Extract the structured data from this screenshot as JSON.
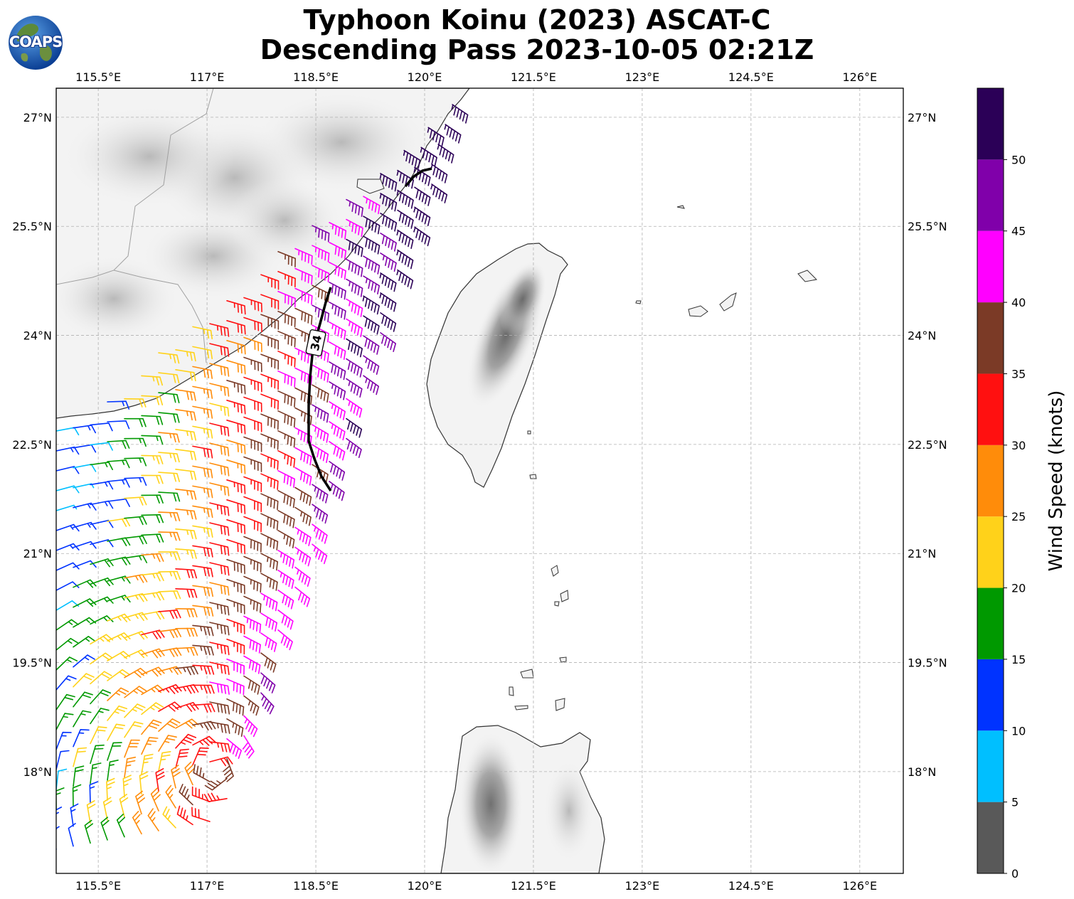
{
  "header": {
    "title_line1": "Typhoon Koinu (2023) ASCAT-C",
    "title_line2": "Descending Pass 2023-10-05 02:21Z",
    "logo_text": "COAPS"
  },
  "map": {
    "lon_labels": [
      "115.5°E",
      "117°E",
      "118.5°E",
      "120°E",
      "121.5°E",
      "123°E",
      "124.5°E",
      "126°E"
    ],
    "lat_labels": [
      "27°N",
      "25.5°N",
      "24°N",
      "22.5°N",
      "21°N",
      "19.5°N",
      "18°N"
    ],
    "lon_values": [
      115.5,
      117,
      118.5,
      120,
      121.5,
      123,
      124.5,
      126
    ],
    "lat_values": [
      27,
      25.5,
      24,
      22.5,
      21,
      19.5,
      18
    ],
    "extent": {
      "lon_min": 114.92,
      "lon_max": 126.6,
      "lat_min": 16.6,
      "lat_max": 27.4
    },
    "wind_radius_label": "34",
    "land_color": "#f4f4f4",
    "coast_color": "#333333"
  },
  "colorbar": {
    "label": "Wind Speed (knots)",
    "ticks": [
      "0",
      "5",
      "10",
      "15",
      "20",
      "25",
      "30",
      "35",
      "40",
      "45",
      "50"
    ],
    "bins": [
      {
        "min": 0,
        "max": 5,
        "color": "#595959"
      },
      {
        "min": 5,
        "max": 10,
        "color": "#00bfff"
      },
      {
        "min": 10,
        "max": 15,
        "color": "#0033ff"
      },
      {
        "min": 15,
        "max": 20,
        "color": "#009900"
      },
      {
        "min": 20,
        "max": 25,
        "color": "#ffd21a"
      },
      {
        "min": 25,
        "max": 30,
        "color": "#ff8c0a"
      },
      {
        "min": 30,
        "max": 35,
        "color": "#ff1010"
      },
      {
        "min": 35,
        "max": 40,
        "color": "#7b3a26"
      },
      {
        "min": 40,
        "max": 45,
        "color": "#ff00ff"
      },
      {
        "min": 45,
        "max": 50,
        "color": "#8000aa"
      },
      {
        "min": 50,
        "max": 55,
        "color": "#2b0057"
      }
    ]
  }
}
